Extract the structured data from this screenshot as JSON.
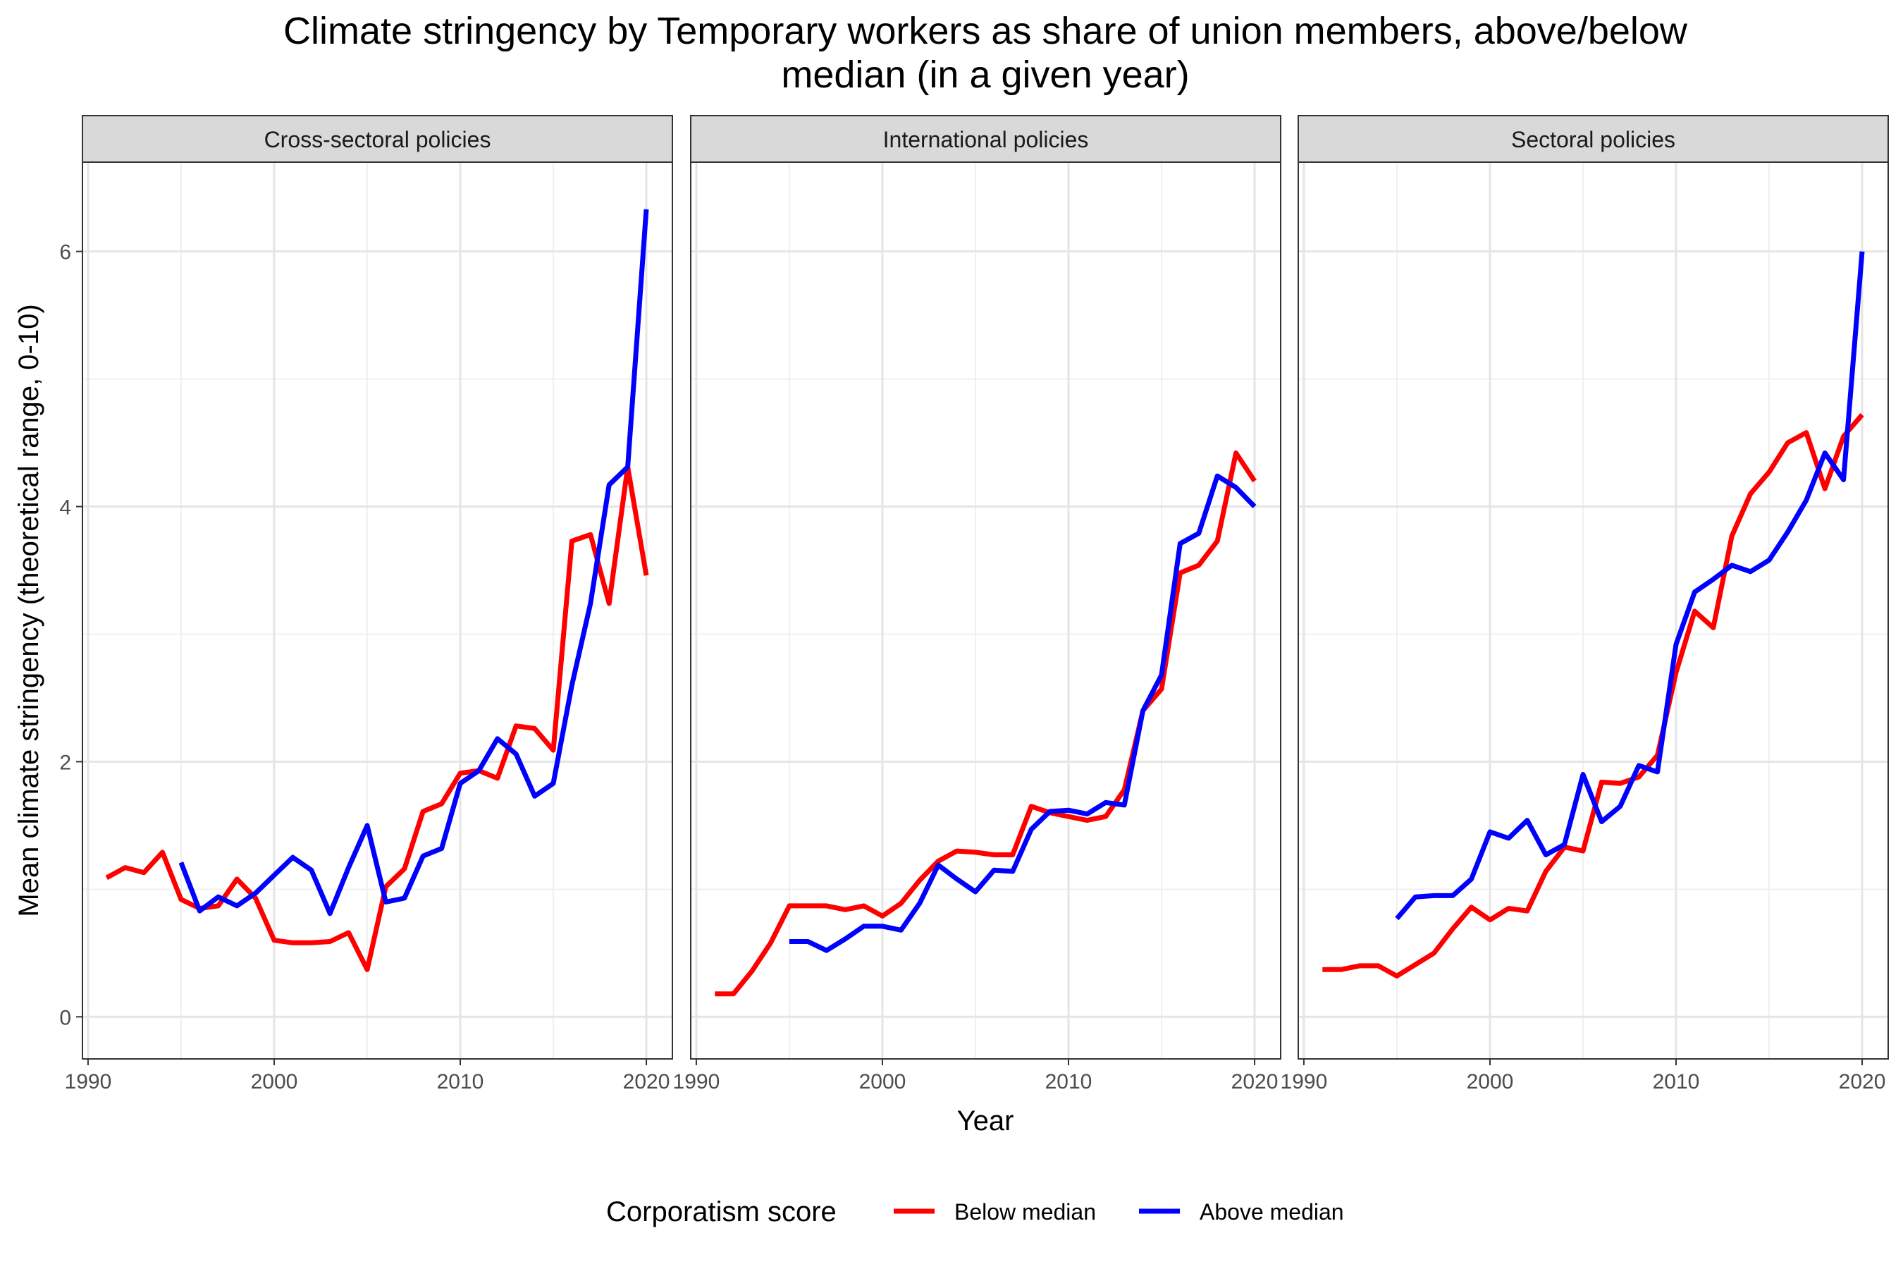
{
  "chart_data": {
    "type": "line",
    "title_lines": [
      "Climate stringency by Temporary workers as share of union members, above/below",
      "median (in a given year)"
    ],
    "xlabel": "Year",
    "ylabel": "Mean climate stringency (theoretical range, 0-10)",
    "xlim": [
      1989.7,
      2021.4
    ],
    "ylim": [
      -0.33,
      6.7
    ],
    "x_ticks": [
      1990,
      2000,
      2010,
      2020
    ],
    "y_ticks": [
      0,
      2,
      4,
      6
    ],
    "grid": true,
    "legend": {
      "position": "bottom",
      "title": "Corporatism score",
      "entries": [
        {
          "name": "Below median",
          "color": "#ff0000"
        },
        {
          "name": "Above median",
          "color": "#0000ff"
        }
      ]
    },
    "panels": [
      {
        "name": "Cross-sectoral policies",
        "series": [
          {
            "name": "Below median",
            "color": "#ff0000",
            "points": [
              [
                1991,
                1.09
              ],
              [
                1992,
                1.17
              ],
              [
                1993,
                1.13
              ],
              [
                1994,
                1.29
              ],
              [
                1995,
                0.92
              ],
              [
                1996,
                0.85
              ],
              [
                1997,
                0.87
              ],
              [
                1998,
                1.08
              ],
              [
                1999,
                0.93
              ],
              [
                2000,
                0.6
              ],
              [
                2001,
                0.58
              ],
              [
                2002,
                0.58
              ],
              [
                2003,
                0.59
              ],
              [
                2004,
                0.66
              ],
              [
                2005,
                0.37
              ],
              [
                2006,
                1.02
              ],
              [
                2007,
                1.16
              ],
              [
                2008,
                1.61
              ],
              [
                2009,
                1.67
              ],
              [
                2010,
                1.91
              ],
              [
                2011,
                1.93
              ],
              [
                2012,
                1.87
              ],
              [
                2013,
                2.28
              ],
              [
                2014,
                2.26
              ],
              [
                2015,
                2.09
              ],
              [
                2016,
                3.73
              ],
              [
                2017,
                3.78
              ],
              [
                2018,
                3.24
              ],
              [
                2019,
                4.31
              ],
              [
                2020,
                3.46
              ]
            ]
          },
          {
            "name": "Above median",
            "color": "#0000ff",
            "points": [
              [
                1995,
                1.21
              ],
              [
                1996,
                0.83
              ],
              [
                1997,
                0.94
              ],
              [
                1998,
                0.87
              ],
              [
                1999,
                0.97
              ],
              [
                2000,
                1.11
              ],
              [
                2001,
                1.25
              ],
              [
                2002,
                1.15
              ],
              [
                2003,
                0.81
              ],
              [
                2004,
                1.17
              ],
              [
                2005,
                1.5
              ],
              [
                2006,
                0.9
              ],
              [
                2007,
                0.93
              ],
              [
                2008,
                1.26
              ],
              [
                2009,
                1.32
              ],
              [
                2010,
                1.83
              ],
              [
                2011,
                1.93
              ],
              [
                2012,
                2.18
              ],
              [
                2013,
                2.06
              ],
              [
                2014,
                1.73
              ],
              [
                2015,
                1.83
              ],
              [
                2016,
                2.6
              ],
              [
                2017,
                3.24
              ],
              [
                2018,
                4.17
              ],
              [
                2019,
                4.31
              ],
              [
                2020,
                6.33
              ]
            ]
          }
        ]
      },
      {
        "name": "International policies",
        "series": [
          {
            "name": "Below median",
            "color": "#ff0000",
            "points": [
              [
                1991,
                0.18
              ],
              [
                1992,
                0.18
              ],
              [
                1993,
                0.36
              ],
              [
                1994,
                0.58
              ],
              [
                1995,
                0.87
              ],
              [
                1996,
                0.87
              ],
              [
                1997,
                0.87
              ],
              [
                1998,
                0.84
              ],
              [
                1999,
                0.87
              ],
              [
                2000,
                0.79
              ],
              [
                2001,
                0.89
              ],
              [
                2002,
                1.07
              ],
              [
                2003,
                1.22
              ],
              [
                2004,
                1.3
              ],
              [
                2005,
                1.29
              ],
              [
                2006,
                1.27
              ],
              [
                2007,
                1.27
              ],
              [
                2008,
                1.65
              ],
              [
                2009,
                1.6
              ],
              [
                2010,
                1.57
              ],
              [
                2011,
                1.54
              ],
              [
                2012,
                1.57
              ],
              [
                2013,
                1.78
              ],
              [
                2014,
                2.4
              ],
              [
                2015,
                2.57
              ],
              [
                2016,
                3.48
              ],
              [
                2017,
                3.54
              ],
              [
                2018,
                3.73
              ],
              [
                2019,
                4.42
              ],
              [
                2020,
                4.2
              ]
            ]
          },
          {
            "name": "Above median",
            "color": "#0000ff",
            "points": [
              [
                1995,
                0.59
              ],
              [
                1996,
                0.59
              ],
              [
                1997,
                0.52
              ],
              [
                1998,
                0.61
              ],
              [
                1999,
                0.71
              ],
              [
                2000,
                0.71
              ],
              [
                2001,
                0.68
              ],
              [
                2002,
                0.89
              ],
              [
                2003,
                1.19
              ],
              [
                2004,
                1.08
              ],
              [
                2005,
                0.98
              ],
              [
                2006,
                1.15
              ],
              [
                2007,
                1.14
              ],
              [
                2008,
                1.47
              ],
              [
                2009,
                1.61
              ],
              [
                2010,
                1.62
              ],
              [
                2011,
                1.59
              ],
              [
                2012,
                1.68
              ],
              [
                2013,
                1.66
              ],
              [
                2014,
                2.4
              ],
              [
                2015,
                2.68
              ],
              [
                2016,
                3.71
              ],
              [
                2017,
                3.79
              ],
              [
                2018,
                4.24
              ],
              [
                2019,
                4.15
              ],
              [
                2020,
                4.0
              ]
            ]
          }
        ]
      },
      {
        "name": "Sectoral policies",
        "series": [
          {
            "name": "Below median",
            "color": "#ff0000",
            "points": [
              [
                1991,
                0.37
              ],
              [
                1992,
                0.37
              ],
              [
                1993,
                0.4
              ],
              [
                1994,
                0.4
              ],
              [
                1995,
                0.32
              ],
              [
                1996,
                0.41
              ],
              [
                1997,
                0.5
              ],
              [
                1998,
                0.69
              ],
              [
                1999,
                0.86
              ],
              [
                2000,
                0.76
              ],
              [
                2001,
                0.85
              ],
              [
                2002,
                0.83
              ],
              [
                2003,
                1.14
              ],
              [
                2004,
                1.33
              ],
              [
                2005,
                1.3
              ],
              [
                2006,
                1.84
              ],
              [
                2007,
                1.83
              ],
              [
                2008,
                1.88
              ],
              [
                2009,
                2.05
              ],
              [
                2010,
                2.7
              ],
              [
                2011,
                3.18
              ],
              [
                2012,
                3.05
              ],
              [
                2013,
                3.77
              ],
              [
                2014,
                4.1
              ],
              [
                2015,
                4.27
              ],
              [
                2016,
                4.5
              ],
              [
                2017,
                4.58
              ],
              [
                2018,
                4.14
              ],
              [
                2019,
                4.55
              ],
              [
                2020,
                4.72
              ]
            ]
          },
          {
            "name": "Above median",
            "color": "#0000ff",
            "points": [
              [
                1995,
                0.77
              ],
              [
                1996,
                0.94
              ],
              [
                1997,
                0.95
              ],
              [
                1998,
                0.95
              ],
              [
                1999,
                1.08
              ],
              [
                2000,
                1.45
              ],
              [
                2001,
                1.4
              ],
              [
                2002,
                1.54
              ],
              [
                2003,
                1.27
              ],
              [
                2004,
                1.35
              ],
              [
                2005,
                1.9
              ],
              [
                2006,
                1.53
              ],
              [
                2007,
                1.65
              ],
              [
                2008,
                1.97
              ],
              [
                2009,
                1.92
              ],
              [
                2010,
                2.92
              ],
              [
                2011,
                3.33
              ],
              [
                2012,
                3.43
              ],
              [
                2013,
                3.54
              ],
              [
                2014,
                3.49
              ],
              [
                2015,
                3.58
              ],
              [
                2016,
                3.8
              ],
              [
                2017,
                4.05
              ],
              [
                2018,
                4.42
              ],
              [
                2019,
                4.21
              ],
              [
                2020,
                6.0
              ]
            ]
          }
        ]
      }
    ]
  }
}
